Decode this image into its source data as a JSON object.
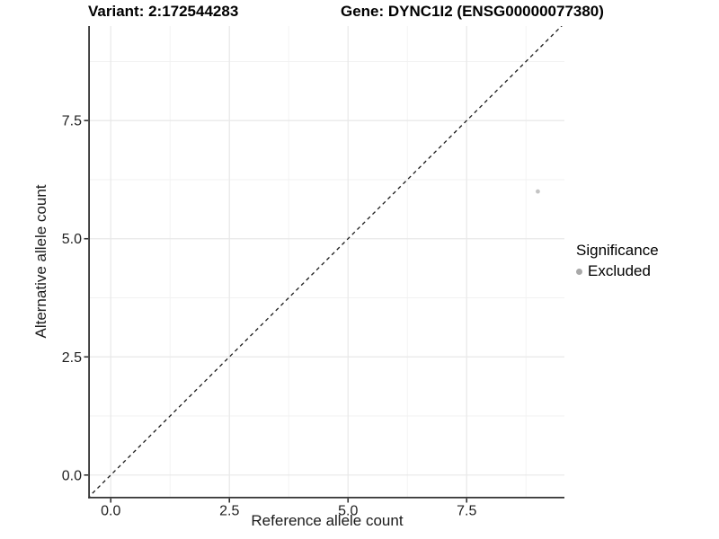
{
  "titles": {
    "variant": "Variant: 2:172544283",
    "gene": "Gene: DYNC1I2 (ENSG00000077380)"
  },
  "chart_data": {
    "type": "scatter",
    "xlabel": "Reference allele count",
    "ylabel": "Alternative allele count",
    "xlim": [
      -0.44,
      9.56
    ],
    "ylim": [
      -0.46,
      9.5
    ],
    "x_ticks": [
      0.0,
      2.5,
      5.0,
      7.5
    ],
    "y_ticks": [
      0.0,
      2.5,
      5.0,
      7.5
    ],
    "x_minor_ticks": [
      1.25,
      3.75,
      6.25,
      8.75
    ],
    "y_minor_ticks": [
      1.25,
      3.75,
      6.25,
      8.75
    ],
    "tick_decimals": 1,
    "grid": true,
    "points": [
      {
        "x": 9,
        "y": 6,
        "significance": "Excluded"
      }
    ],
    "point_color": "#c4c4c4",
    "point_radius": 2.4,
    "identity_line": {
      "slope": 1,
      "intercept": 0,
      "style": "dashed"
    },
    "legend": {
      "title": "Significance",
      "position": "right",
      "items": [
        {
          "label": "Excluded",
          "color": "#a9a9a9"
        }
      ]
    }
  },
  "colors": {
    "background": "#ffffff",
    "axis_line": "#333333",
    "tick_mark": "#333333",
    "tick_text": "#1f1f1f",
    "grid_major": "#e8e8e8",
    "grid_minor": "#f2f2f2",
    "identity_line": "#1a1a1a"
  }
}
